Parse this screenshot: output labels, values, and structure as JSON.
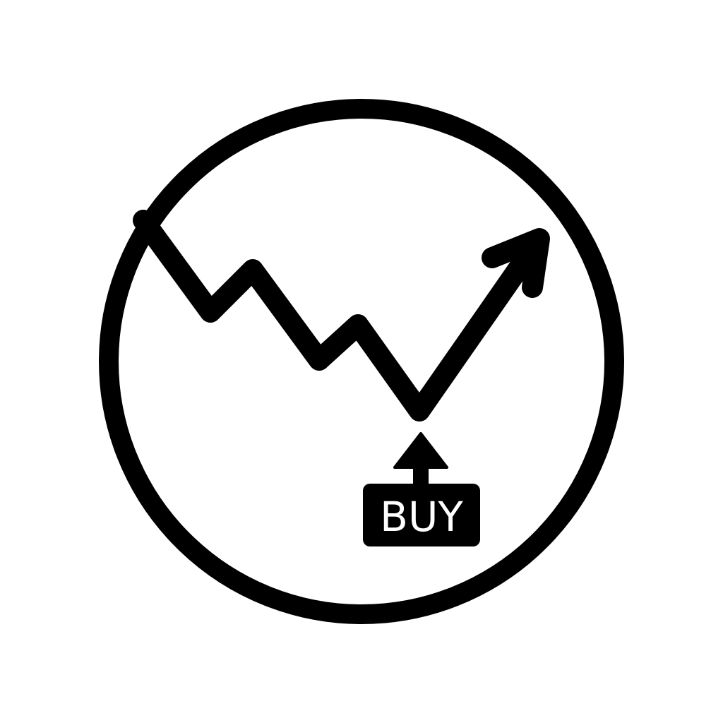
{
  "icon": {
    "name": "buy-signal-chart-icon",
    "stroke_color": "#000000",
    "background_color": "#ffffff",
    "badge_text_color": "#ffffff",
    "badge": {
      "label": "BUY"
    }
  }
}
